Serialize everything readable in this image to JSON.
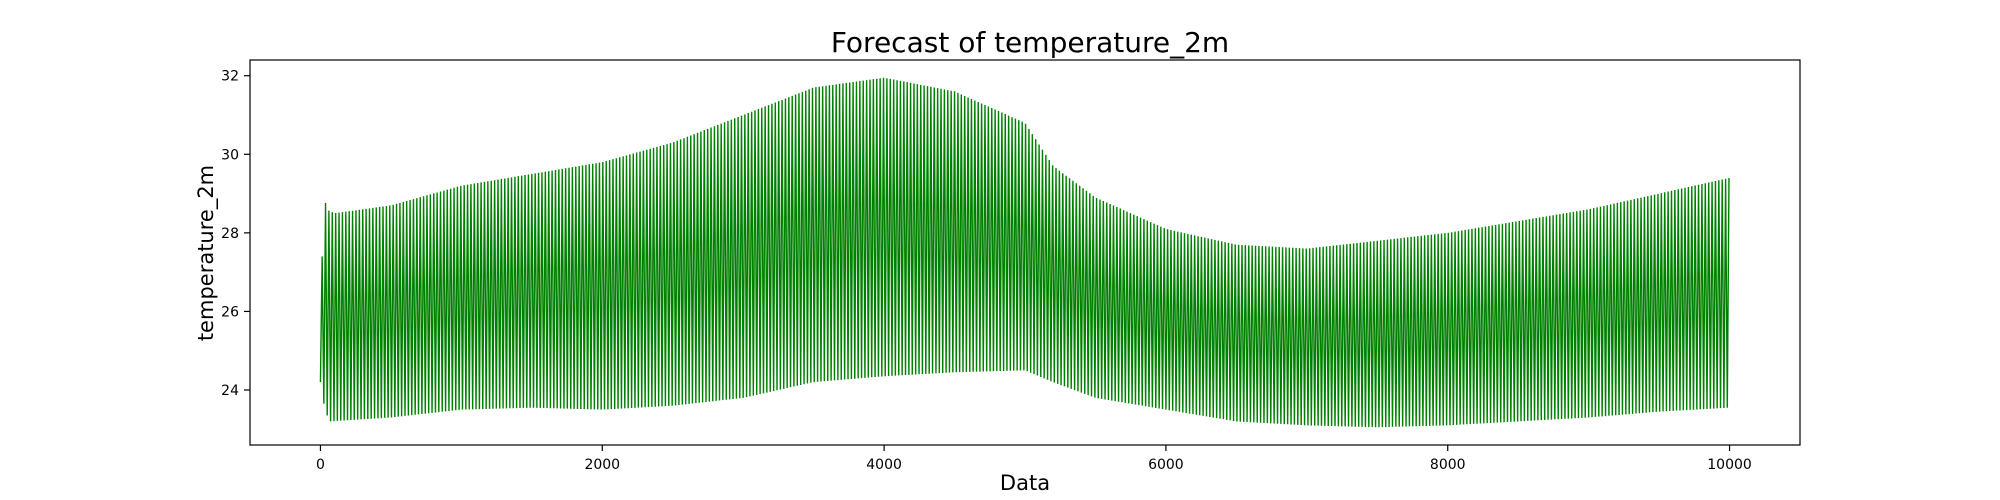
{
  "chart_data": {
    "type": "line",
    "title": "Forecast of temperature_2m",
    "xlabel": "Data",
    "ylabel": "temperature_2m",
    "xlim": [
      -500,
      10500
    ],
    "ylim": [
      22.6,
      32.4
    ],
    "x_ticks": [
      0,
      2000,
      4000,
      6000,
      8000,
      10000
    ],
    "y_ticks": [
      24,
      26,
      28,
      30,
      32
    ],
    "x_tick_labels": [
      "0",
      "2000",
      "4000",
      "6000",
      "8000",
      "10000"
    ],
    "y_tick_labels": [
      "24",
      "26",
      "28",
      "30",
      "32"
    ],
    "grid": false,
    "legend": "none",
    "series": [
      {
        "color": "#008000",
        "cycle_length": 24,
        "x_range": [
          0,
          10000
        ],
        "upper_envelope": [
          [
            0,
            24.4
          ],
          [
            20,
            29.4
          ],
          [
            40,
            28.6
          ],
          [
            100,
            28.5
          ],
          [
            500,
            28.7
          ],
          [
            1000,
            29.2
          ],
          [
            1500,
            29.5
          ],
          [
            2000,
            29.8
          ],
          [
            2500,
            30.3
          ],
          [
            3000,
            31.0
          ],
          [
            3500,
            31.7
          ],
          [
            4000,
            31.95
          ],
          [
            4500,
            31.6
          ],
          [
            5000,
            30.8
          ],
          [
            5200,
            29.7
          ],
          [
            5500,
            28.9
          ],
          [
            6000,
            28.1
          ],
          [
            6500,
            27.7
          ],
          [
            7000,
            27.6
          ],
          [
            7500,
            27.8
          ],
          [
            8000,
            28.0
          ],
          [
            8500,
            28.3
          ],
          [
            9000,
            28.6
          ],
          [
            9500,
            29.0
          ],
          [
            10000,
            29.4
          ]
        ],
        "lower_envelope": [
          [
            0,
            24.2
          ],
          [
            20,
            23.7
          ],
          [
            60,
            23.2
          ],
          [
            500,
            23.3
          ],
          [
            1000,
            23.5
          ],
          [
            1500,
            23.55
          ],
          [
            2000,
            23.5
          ],
          [
            2500,
            23.6
          ],
          [
            3000,
            23.8
          ],
          [
            3500,
            24.2
          ],
          [
            4000,
            24.35
          ],
          [
            4500,
            24.45
          ],
          [
            5000,
            24.5
          ],
          [
            5200,
            24.2
          ],
          [
            5500,
            23.8
          ],
          [
            6000,
            23.5
          ],
          [
            6500,
            23.2
          ],
          [
            7000,
            23.1
          ],
          [
            7500,
            23.05
          ],
          [
            8000,
            23.1
          ],
          [
            8500,
            23.2
          ],
          [
            9000,
            23.3
          ],
          [
            9500,
            23.45
          ],
          [
            10000,
            23.55
          ]
        ]
      }
    ]
  }
}
